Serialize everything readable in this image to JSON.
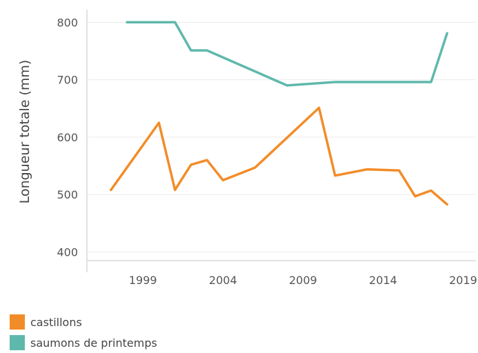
{
  "chart_data": {
    "type": "line",
    "title": "",
    "xlabel": "",
    "ylabel": "Longueur totale (mm)",
    "xlim": [
      1995.5,
      2019.8
    ],
    "ylim": [
      385,
      822
    ],
    "x_ticks": [
      1999,
      2004,
      2009,
      2014,
      2019
    ],
    "y_ticks": [
      400,
      500,
      600,
      700,
      800
    ],
    "grid": "horizontal",
    "legend_position": "bottom-left",
    "series": [
      {
        "name": "castillons",
        "color": "#F28C28",
        "x": [
          1997,
          2000,
          2001,
          2002,
          2003,
          2004,
          2006,
          2010,
          2011,
          2013,
          2015,
          2016,
          2017,
          2018
        ],
        "y": [
          508,
          625,
          508,
          552,
          560,
          525,
          547,
          651,
          533,
          544,
          542,
          497,
          507,
          483
        ]
      },
      {
        "name": "saumons de printemps",
        "color": "#5FB8AC",
        "x": [
          1998,
          2001,
          2002,
          2003,
          2008,
          2011,
          2017,
          2018
        ],
        "y": [
          800,
          800,
          751,
          751,
          690,
          696,
          696,
          781
        ]
      }
    ]
  }
}
